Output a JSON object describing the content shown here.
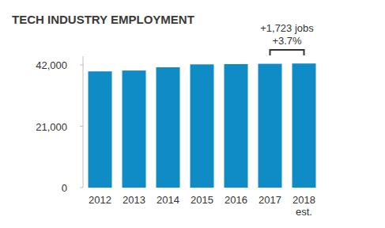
{
  "chart_data": {
    "type": "bar",
    "title": "TECH INDUSTRY EMPLOYMENT",
    "categories": [
      "2012",
      "2013",
      "2014",
      "2015",
      "2016",
      "2017",
      "2018\nest."
    ],
    "values": [
      39800,
      40100,
      41200,
      42200,
      42300,
      42400,
      42500
    ],
    "color": "#0f8bc6",
    "ylim": [
      0,
      45000
    ],
    "yticks": [
      0,
      {
        "value": 21000,
        "label": "21,000"
      },
      {
        "value": 42000,
        "label": "42,000"
      }
    ],
    "grid": false,
    "annotations": [
      "+1,723 jobs",
      "+3.7%"
    ]
  }
}
